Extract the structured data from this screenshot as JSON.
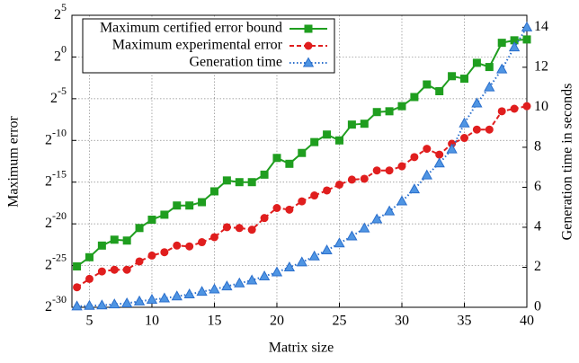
{
  "chart_data": {
    "type": "line",
    "xlabel": "Matrix size",
    "ylabel": "Maximum error",
    "y2label": "Generation time in seconds",
    "x": [
      4,
      5,
      6,
      7,
      8,
      9,
      10,
      11,
      12,
      13,
      14,
      15,
      16,
      17,
      18,
      19,
      20,
      21,
      22,
      23,
      24,
      25,
      26,
      27,
      28,
      29,
      30,
      31,
      32,
      33,
      34,
      35,
      36,
      37,
      38,
      39,
      40
    ],
    "xlim": [
      3.6,
      40
    ],
    "xticks": [
      5,
      10,
      15,
      20,
      25,
      30,
      35,
      40
    ],
    "yscale": "log",
    "ylim": [
      9.313225746154785e-10,
      32
    ],
    "yticks": [
      {
        "value": 9.313225746154785e-10,
        "label": "2^-30"
      },
      {
        "value": 2.9802322387695312e-08,
        "label": "2^-25"
      },
      {
        "value": 9.5367431640625e-07,
        "label": "2^-20"
      },
      {
        "value": 3.0517578125e-05,
        "label": "2^-15"
      },
      {
        "value": 0.0009765625,
        "label": "2^-10"
      },
      {
        "value": 0.03125,
        "label": "2^-5"
      },
      {
        "value": 1,
        "label": "2^0"
      },
      {
        "value": 32,
        "label": "2^5"
      }
    ],
    "y2lim": [
      0,
      14.6
    ],
    "y2ticks": [
      0,
      2,
      4,
      6,
      8,
      10,
      12,
      14
    ],
    "grid": true,
    "legend": "upper left",
    "series": [
      {
        "name": "Maximum certified error bound",
        "color": "#1f9e1f",
        "marker": "square",
        "linestyle": "solid",
        "values": [
          2.78e-08,
          5.96e-08,
          1.57e-07,
          2.56e-07,
          2.38e-07,
          6.74e-07,
          1.35e-06,
          2.04e-06,
          4.38e-06,
          4.38e-06,
          5.78e-06,
          1.42e-05,
          3.51e-05,
          3.05e-05,
          3.05e-05,
          5.69e-05,
          0.000228,
          0.00014,
          0.000345,
          0.00085,
          0.00159,
          0.000977,
          0.00364,
          0.00391,
          0.0103,
          0.011,
          0.0168,
          0.0359,
          0.102,
          0.0583,
          0.203,
          0.165,
          0.616,
          0.435,
          3.25,
          4,
          4.29
        ]
      },
      {
        "name": "Maximum experimental error",
        "color": "#e01e1e",
        "marker": "circle",
        "linestyle": "dashed",
        "values": [
          4.92e-09,
          9.84e-09,
          1.83e-08,
          2.11e-08,
          2.11e-08,
          4.21e-08,
          6.85e-08,
          9.04e-08,
          1.57e-07,
          1.47e-07,
          2.08e-07,
          3.15e-07,
          7.23e-07,
          6.74e-07,
          5.87e-07,
          1.55e-06,
          3.56e-06,
          3.1e-06,
          6.2e-06,
          1.01e-05,
          1.53e-05,
          2.48e-05,
          3.76e-05,
          4.03e-05,
          8.06e-05,
          8.06e-05,
          0.000114,
          0.000244,
          0.000488,
          0.0003,
          0.00074,
          0.0012,
          0.0024,
          0.0024,
          0.011,
          0.0136,
          0.0168
        ]
      },
      {
        "name": "Generation time",
        "color": "#2b6fcc",
        "marker": "triangle",
        "linestyle": "dotted",
        "axis": "y2",
        "values": [
          0.05,
          0.08,
          0.1,
          0.15,
          0.2,
          0.3,
          0.38,
          0.45,
          0.55,
          0.65,
          0.78,
          0.9,
          1.05,
          1.2,
          1.35,
          1.55,
          1.75,
          2.0,
          2.25,
          2.55,
          2.85,
          3.2,
          3.55,
          3.95,
          4.4,
          4.8,
          5.3,
          5.9,
          6.6,
          7.2,
          7.9,
          9.2,
          10.2,
          11.0,
          11.9,
          13.0,
          14.0
        ]
      }
    ]
  }
}
